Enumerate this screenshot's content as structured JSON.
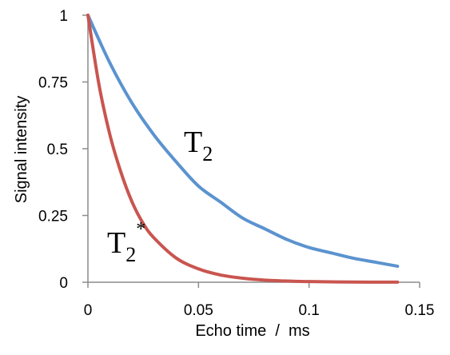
{
  "chart_data": {
    "type": "line",
    "title": "",
    "xlabel": "Echo time  /  ms",
    "ylabel": "Signal intensity",
    "xlim": [
      0,
      0.15
    ],
    "ylim": [
      0,
      1
    ],
    "x_ticks": [
      0,
      0.05,
      0.1,
      0.15
    ],
    "x_tick_labels": [
      "0",
      "0.05",
      "0.1",
      "0.15"
    ],
    "y_ticks": [
      0,
      0.25,
      0.5,
      0.75,
      1
    ],
    "y_tick_labels": [
      "0",
      "0.25",
      "0.5",
      "0.75",
      "1"
    ],
    "grid": false,
    "legend": "none",
    "series": [
      {
        "name_main": "T",
        "name_sub": "2",
        "name_sup": "",
        "color": "#5b93cf",
        "x": [
          0,
          0.01,
          0.02,
          0.03,
          0.04,
          0.05,
          0.06,
          0.07,
          0.08,
          0.09,
          0.1,
          0.11,
          0.12,
          0.13,
          0.14
        ],
        "values": [
          1,
          0.82,
          0.67,
          0.55,
          0.45,
          0.36,
          0.3,
          0.24,
          0.2,
          0.16,
          0.13,
          0.11,
          0.09,
          0.075,
          0.06
        ]
      },
      {
        "name_main": "T",
        "name_sub": "2",
        "name_sup": "*",
        "color": "#c9554f",
        "x": [
          0,
          0.005,
          0.01,
          0.015,
          0.02,
          0.025,
          0.03,
          0.04,
          0.05,
          0.06,
          0.07,
          0.08,
          0.09,
          0.1,
          0.12,
          0.14
        ],
        "values": [
          1,
          0.74,
          0.55,
          0.41,
          0.3,
          0.22,
          0.165,
          0.09,
          0.05,
          0.027,
          0.015,
          0.008,
          0.0045,
          0.0025,
          0.0008,
          0.0002
        ]
      }
    ]
  }
}
